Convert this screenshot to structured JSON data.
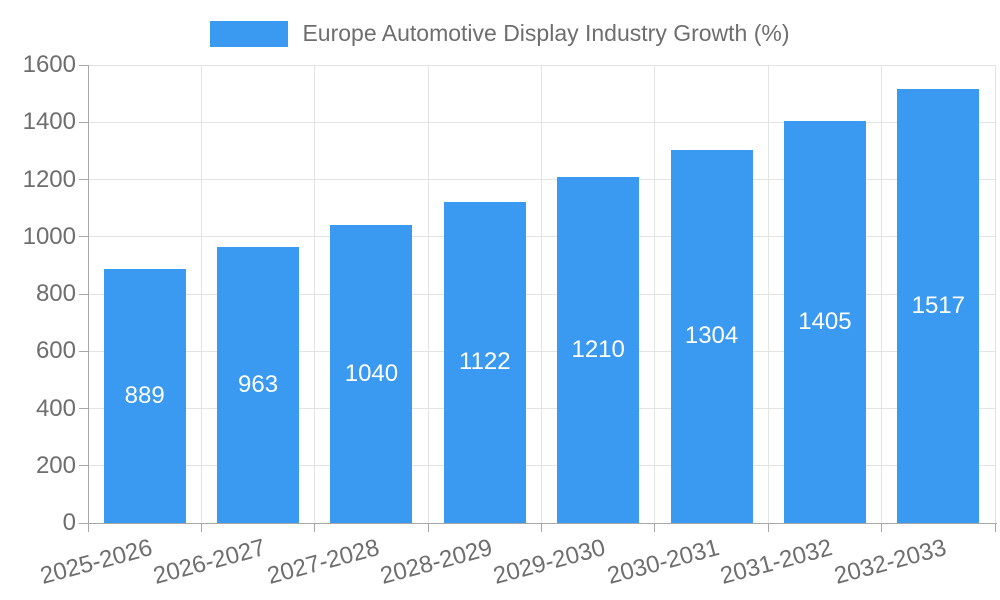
{
  "chart_data": {
    "type": "bar",
    "title": "Europe Automotive Display Industry Growth (%)",
    "legend": {
      "position": "top",
      "label": "Europe Automotive Display Industry Growth (%)"
    },
    "categories": [
      "2025-2026",
      "2026-2027",
      "2027-2028",
      "2028-2029",
      "2029-2030",
      "2030-2031",
      "2031-2032",
      "2032-2033"
    ],
    "values": [
      889,
      963,
      1040,
      1122,
      1210,
      1304,
      1405,
      1517
    ],
    "xlabel": "",
    "ylabel": "",
    "ylim": [
      0,
      1600
    ],
    "yticks": [
      0,
      200,
      400,
      600,
      800,
      1000,
      1200,
      1400,
      1600
    ],
    "grid": true,
    "bar_value_labels": true,
    "x_label_rotation_deg": -15,
    "colors": {
      "bar": "#3A99F0",
      "value_label": "#FFFFFF",
      "axis_text": "#6E6E6E",
      "gridline": "#E3E3E3",
      "axis_line": "#A8A8A8",
      "background": "#FFFFFF"
    }
  }
}
